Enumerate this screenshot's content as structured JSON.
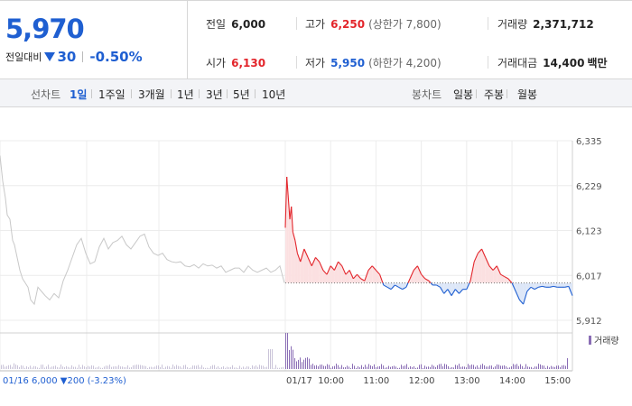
{
  "quote": {
    "price": "5,970",
    "change_label": "전일대비",
    "change_amount": "30",
    "change_rate": "-0.50%",
    "prev_close": {
      "label": "전일",
      "value": "6,000"
    },
    "high": {
      "label": "고가",
      "value": "6,250",
      "limit": "(상한가 7,800)"
    },
    "volume": {
      "label": "거래량",
      "value": "2,371,712"
    },
    "open": {
      "label": "시가",
      "value": "6,130"
    },
    "low": {
      "label": "저가",
      "value": "5,950",
      "limit": "(하한가 4,200)"
    },
    "trade_value": {
      "label": "거래대금",
      "value": "14,400",
      "unit": "백만"
    }
  },
  "line_tabs": {
    "label": "선차트",
    "items": [
      "1일",
      "1주일",
      "3개월",
      "1년",
      "3년",
      "5년",
      "10년"
    ],
    "active": "1일"
  },
  "candle_tabs": {
    "label": "봉차트",
    "items": [
      "일봉",
      "주봉",
      "월봉"
    ]
  },
  "colors": {
    "up": "#e3252b",
    "down": "#1f5fd1",
    "prev_day": "#c8c8c8",
    "up_fill": "#fbe0e1",
    "down_fill": "#dde7f8",
    "volume": "#8a6db5"
  },
  "chart_data": {
    "type": "line",
    "title": "",
    "xlabel": "",
    "ylabel": "",
    "ylim": [
      5912,
      6335
    ],
    "y_ticks": [
      "6,335",
      "6,229",
      "6,123",
      "6,017",
      "5,912"
    ],
    "x_ticks": [
      "01/17",
      "10:00",
      "11:00",
      "12:00",
      "13:00",
      "14:00",
      "15:00"
    ],
    "baseline": 6000,
    "prev_day_info": "01/16  6,000 ▼200 (-3.23%)",
    "prev_day_series": {
      "x": [
        0,
        3,
        6,
        8,
        11,
        14,
        16,
        19,
        22,
        25,
        28,
        31,
        34,
        38,
        42,
        46,
        50,
        55,
        60,
        65,
        70,
        75,
        80,
        85,
        90,
        95,
        100,
        105,
        110,
        115,
        120,
        125,
        130,
        135,
        140,
        145,
        150,
        155,
        160,
        165,
        170,
        175,
        180,
        185,
        190,
        195,
        200,
        205,
        210,
        215,
        220,
        225,
        230,
        235,
        240,
        245,
        250,
        255,
        260,
        265,
        270,
        275,
        280,
        285,
        290,
        295,
        300,
        305,
        310,
        315
      ],
      "values": [
        6300,
        6240,
        6200,
        6160,
        6150,
        6100,
        6090,
        6060,
        6030,
        6010,
        6000,
        5990,
        5960,
        5950,
        5990,
        5980,
        5970,
        5960,
        5975,
        5965,
        6005,
        6030,
        6060,
        6090,
        6105,
        6070,
        6045,
        6050,
        6085,
        6105,
        6080,
        6095,
        6100,
        6110,
        6090,
        6080,
        6095,
        6110,
        6115,
        6085,
        6070,
        6065,
        6070,
        6055,
        6050,
        6048,
        6050,
        6040,
        6038,
        6043,
        6035,
        6045,
        6040,
        6042,
        6035,
        6040,
        6025,
        6030,
        6035,
        6035,
        6025,
        6040,
        6030,
        6025,
        6030,
        6035,
        6025,
        6030,
        6040,
        6000
      ]
    },
    "today_series": {
      "name": "",
      "x": [
        "09:00",
        "09:02",
        "09:04",
        "09:06",
        "09:08",
        "09:10",
        "09:13",
        "09:16",
        "09:20",
        "09:25",
        "09:30",
        "09:35",
        "09:40",
        "09:45",
        "09:50",
        "09:55",
        "10:00",
        "10:05",
        "10:10",
        "10:15",
        "10:20",
        "10:25",
        "10:30",
        "10:35",
        "10:40",
        "10:45",
        "10:50",
        "10:55",
        "11:00",
        "11:05",
        "11:10",
        "11:15",
        "11:20",
        "11:25",
        "11:30",
        "11:35",
        "11:40",
        "11:45",
        "11:50",
        "11:55",
        "12:00",
        "12:05",
        "12:10",
        "12:15",
        "12:20",
        "12:25",
        "12:30",
        "12:35",
        "12:40",
        "12:45",
        "12:50",
        "12:55",
        "13:00",
        "13:05",
        "13:10",
        "13:15",
        "13:20",
        "13:25",
        "13:30",
        "13:35",
        "13:40",
        "13:45",
        "13:50",
        "13:55",
        "14:00",
        "14:05",
        "14:10",
        "14:15",
        "14:20",
        "14:25",
        "14:30",
        "14:35",
        "14:40",
        "14:45",
        "14:50",
        "14:55",
        "15:00",
        "15:05",
        "15:10",
        "15:15",
        "15:20"
      ],
      "values": [
        6130,
        6250,
        6200,
        6150,
        6180,
        6120,
        6100,
        6070,
        6050,
        6080,
        6060,
        6040,
        6060,
        6050,
        6030,
        6020,
        6040,
        6030,
        6050,
        6040,
        6020,
        6030,
        6010,
        6020,
        6010,
        6005,
        6030,
        6040,
        6030,
        6020,
        5995,
        5990,
        5985,
        5995,
        5990,
        5985,
        5990,
        6010,
        6030,
        6040,
        6020,
        6010,
        6005,
        5995,
        5995,
        5990,
        5975,
        5985,
        5970,
        5985,
        5975,
        5985,
        5985,
        6005,
        6050,
        6070,
        6080,
        6060,
        6040,
        6030,
        6040,
        6020,
        6015,
        6010,
        6000,
        5980,
        5960,
        5950,
        5980,
        5990,
        5985,
        5990,
        5992,
        5990,
        5990,
        5992,
        5990,
        5990,
        5990,
        5992,
        5970
      ]
    },
    "volume_label": "거래량"
  }
}
